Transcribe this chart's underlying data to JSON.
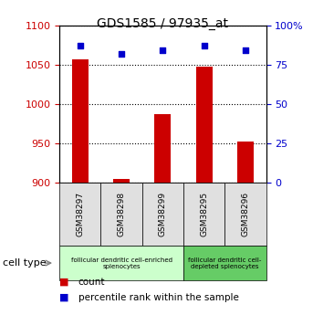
{
  "title": "GDS1585 / 97935_at",
  "samples": [
    "GSM38297",
    "GSM38298",
    "GSM38299",
    "GSM38295",
    "GSM38296"
  ],
  "counts": [
    1057,
    905,
    987,
    1047,
    952
  ],
  "percentiles": [
    87,
    82,
    84,
    87,
    84
  ],
  "ylim_left": [
    900,
    1100
  ],
  "ylim_right": [
    0,
    100
  ],
  "yticks_left": [
    900,
    950,
    1000,
    1050,
    1100
  ],
  "yticks_right": [
    0,
    25,
    50,
    75,
    100
  ],
  "bar_color": "#cc0000",
  "dot_color": "#0000cc",
  "bar_width": 0.4,
  "groups": [
    {
      "label": "follicular dendritic cell-enriched\nsplenocytes",
      "n_samples": 3,
      "color": "#ccffcc"
    },
    {
      "label": "follicular dendritic cell-\ndepleted splenocytes",
      "n_samples": 2,
      "color": "#66cc66"
    }
  ],
  "cell_type_label": "cell type",
  "legend_count_label": "count",
  "legend_percentile_label": "percentile rank within the sample",
  "tick_color_left": "#cc0000",
  "tick_color_right": "#0000cc",
  "bg_color": "#e0e0e0"
}
